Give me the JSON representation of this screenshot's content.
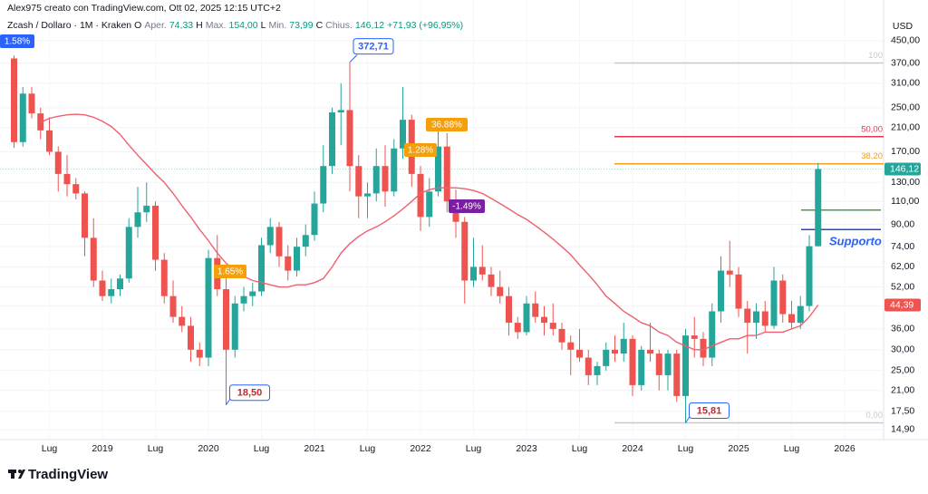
{
  "header": {
    "author": "Alex975 creato con TradingView.com, Ott 02, 2025 12:15 UTC+2",
    "symbol": "Zcash / Dollaro · 1M · Kraken",
    "legend": [
      {
        "key": "O",
        "label": "Aper.",
        "value": "74,33"
      },
      {
        "key": "H",
        "label": "Max.",
        "value": "154,00"
      },
      {
        "key": "L",
        "label": "Min.",
        "value": "73,99"
      },
      {
        "key": "C",
        "label": "Chius.",
        "value": "146,12"
      }
    ],
    "change": "+71,93 (+96,95%)"
  },
  "footer": {
    "logo": "TradingView"
  },
  "chart_data": {
    "type": "candlestick",
    "currency": "USD",
    "log_scale": true,
    "grid": true,
    "up_color": "#26a69a",
    "down_color": "#ef5350",
    "x": [
      "2018-03",
      "2018-04",
      "2018-05",
      "2018-06",
      "2018-07",
      "2018-08",
      "2018-09",
      "2018-10",
      "2018-11",
      "2018-12",
      "2019-01",
      "2019-02",
      "2019-03",
      "2019-04",
      "2019-05",
      "2019-06",
      "2019-07",
      "2019-08",
      "2019-09",
      "2019-10",
      "2019-11",
      "2019-12",
      "2020-01",
      "2020-02",
      "2020-03",
      "2020-04",
      "2020-05",
      "2020-06",
      "2020-07",
      "2020-08",
      "2020-09",
      "2020-10",
      "2020-11",
      "2020-12",
      "2021-01",
      "2021-02",
      "2021-03",
      "2021-04",
      "2021-05",
      "2021-06",
      "2021-07",
      "2021-08",
      "2021-09",
      "2021-10",
      "2021-11",
      "2021-12",
      "2022-01",
      "2022-02",
      "2022-03",
      "2022-04",
      "2022-05",
      "2022-06",
      "2022-07",
      "2022-08",
      "2022-09",
      "2022-10",
      "2022-11",
      "2022-12",
      "2023-01",
      "2023-02",
      "2023-03",
      "2023-04",
      "2023-05",
      "2023-06",
      "2023-07",
      "2023-08",
      "2023-09",
      "2023-10",
      "2023-11",
      "2023-12",
      "2024-01",
      "2024-02",
      "2024-03",
      "2024-04",
      "2024-05",
      "2024-06",
      "2024-07",
      "2024-08",
      "2024-09",
      "2024-10",
      "2024-11",
      "2024-12",
      "2025-01",
      "2025-02",
      "2025-03",
      "2025-04",
      "2025-05",
      "2025-06",
      "2025-07",
      "2025-08",
      "2025-09",
      "2025-10"
    ],
    "open": [
      385,
      185,
      283,
      238,
      205,
      170,
      140,
      128,
      118,
      80,
      55,
      48,
      51,
      56,
      88,
      100,
      106,
      66,
      48,
      40,
      37,
      30,
      28,
      67,
      51,
      30,
      45,
      48,
      50,
      75,
      88,
      68,
      60,
      74,
      82,
      108,
      150,
      240,
      245,
      150,
      115,
      118,
      150,
      120,
      175,
      225,
      140,
      96,
      120,
      178,
      110,
      92,
      55,
      62,
      58,
      52,
      48,
      38,
      35,
      45,
      40,
      38,
      36,
      32,
      30,
      28,
      24,
      26,
      30,
      29,
      33,
      22,
      30,
      29,
      24,
      29,
      20,
      34,
      33,
      28,
      42,
      60,
      58,
      43,
      38,
      42,
      37,
      55,
      41,
      38,
      44,
      74.33
    ],
    "high": [
      395,
      300,
      300,
      250,
      230,
      178,
      165,
      135,
      120,
      95,
      60,
      56,
      58,
      95,
      125,
      130,
      110,
      70,
      55,
      44,
      40,
      32,
      72,
      82,
      56,
      48,
      52,
      54,
      80,
      95,
      92,
      75,
      80,
      90,
      120,
      180,
      250,
      310,
      372.71,
      165,
      130,
      175,
      180,
      190,
      300,
      235,
      150,
      135,
      205,
      200,
      122,
      96,
      80,
      75,
      62,
      60,
      52,
      40,
      48,
      50,
      44,
      45,
      38,
      34,
      36,
      30,
      27,
      32,
      34,
      38,
      34,
      31,
      38,
      30,
      30,
      30,
      36,
      40,
      35,
      45,
      68,
      78,
      62,
      46,
      45,
      46,
      62,
      58,
      46,
      48,
      82,
      154
    ],
    "low": [
      176,
      178,
      228,
      190,
      165,
      120,
      115,
      112,
      68,
      52,
      46,
      45,
      48,
      54,
      80,
      92,
      60,
      45,
      38,
      35,
      27,
      26,
      26,
      48,
      18.5,
      28,
      42,
      44,
      48,
      70,
      62,
      55,
      57,
      68,
      78,
      100,
      140,
      180,
      120,
      95,
      95,
      110,
      105,
      115,
      160,
      125,
      85,
      88,
      115,
      100,
      80,
      45,
      52,
      55,
      48,
      45,
      34,
      33,
      34,
      38,
      34,
      34,
      30,
      24,
      27,
      22,
      22,
      25,
      27,
      27,
      20,
      21,
      27,
      21,
      21,
      19,
      15.81,
      28,
      26,
      26,
      38,
      52,
      40,
      29,
      33,
      35,
      36,
      38,
      36,
      36,
      42,
      73.99
    ],
    "close": [
      185,
      283,
      238,
      205,
      170,
      140,
      128,
      118,
      80,
      55,
      48,
      51,
      56,
      88,
      100,
      106,
      66,
      48,
      40,
      37,
      30,
      28,
      67,
      51,
      30,
      45,
      48,
      50,
      75,
      88,
      68,
      60,
      74,
      82,
      108,
      150,
      240,
      245,
      150,
      115,
      118,
      150,
      120,
      175,
      225,
      140,
      96,
      120,
      178,
      110,
      92,
      55,
      62,
      58,
      52,
      48,
      38,
      35,
      45,
      40,
      38,
      36,
      32,
      30,
      28,
      24,
      26,
      30,
      29,
      33,
      22,
      30,
      29,
      24,
      29,
      20,
      34,
      33,
      28,
      42,
      60,
      58,
      43,
      38,
      42,
      37,
      55,
      41,
      38,
      44,
      74.33,
      146.12
    ],
    "close_label": "146,12",
    "ma": {
      "color": "#ef5f6f",
      "last_label": "44,39",
      "values": [
        null,
        null,
        null,
        220,
        228,
        232,
        235,
        236,
        235,
        230,
        222,
        212,
        198,
        180,
        165,
        152,
        140,
        130,
        118,
        106,
        96,
        86,
        78,
        70,
        64,
        60,
        57,
        55,
        54,
        53,
        52,
        52,
        53,
        53,
        54,
        56,
        62,
        70,
        76,
        81,
        85,
        88,
        92,
        97,
        103,
        110,
        118,
        122,
        124,
        124,
        124,
        123,
        121,
        118,
        113,
        108,
        103,
        98,
        94,
        89,
        84,
        79,
        74,
        69,
        63,
        58,
        53,
        48,
        45,
        42,
        40,
        38,
        37,
        35,
        34,
        32,
        31,
        30,
        30,
        31,
        32,
        33,
        33,
        34,
        34,
        35,
        35,
        35,
        36,
        37,
        40,
        44.39
      ]
    },
    "ylim": [
      13.65,
      557
    ],
    "yticks": [
      {
        "value": 14.9,
        "label": "14,90"
      },
      {
        "value": 17.5,
        "label": "17,50"
      },
      {
        "value": 21,
        "label": "21,00"
      },
      {
        "value": 25,
        "label": "25,00"
      },
      {
        "value": 30,
        "label": "30,00"
      },
      {
        "value": 36,
        "label": "36,00"
      },
      {
        "value": 44,
        "label": "44,00"
      },
      {
        "value": 52,
        "label": "52,00"
      },
      {
        "value": 62,
        "label": "62,00"
      },
      {
        "value": 74,
        "label": "74,00"
      },
      {
        "value": 90,
        "label": "90,00"
      },
      {
        "value": 110,
        "label": "110,00"
      },
      {
        "value": 130,
        "label": "130,00"
      },
      {
        "value": 170,
        "label": "170,00"
      },
      {
        "value": 210,
        "label": "210,00"
      },
      {
        "value": 250,
        "label": "250,00"
      },
      {
        "value": 310,
        "label": "310,00"
      },
      {
        "value": 370,
        "label": "370,00"
      },
      {
        "value": 450,
        "label": "450,00"
      }
    ],
    "xlim": [
      "2018-02",
      "2026-05"
    ],
    "xticks": [
      {
        "value": "2018-07",
        "label": "Lug"
      },
      {
        "value": "2019-01",
        "label": "2019"
      },
      {
        "value": "2019-07",
        "label": "Lug"
      },
      {
        "value": "2020-01",
        "label": "2020"
      },
      {
        "value": "2020-07",
        "label": "Lug"
      },
      {
        "value": "2021-01",
        "label": "2021"
      },
      {
        "value": "2021-07",
        "label": "Lug"
      },
      {
        "value": "2022-01",
        "label": "2022"
      },
      {
        "value": "2022-07",
        "label": "Lug"
      },
      {
        "value": "2023-01",
        "label": "2023"
      },
      {
        "value": "2023-07",
        "label": "Lug"
      },
      {
        "value": "2024-01",
        "label": "2024"
      },
      {
        "value": "2024-07",
        "label": "Lug"
      },
      {
        "value": "2025-01",
        "label": "2025"
      },
      {
        "value": "2025-07",
        "label": "Lug"
      },
      {
        "value": "2026-01",
        "label": "2026"
      }
    ],
    "fib_levels": [
      {
        "value": 370,
        "label": "100",
        "color": "#c7c9cf"
      },
      {
        "value": 194,
        "label": "50,00",
        "color": "#e53950"
      },
      {
        "value": 153,
        "label": "38,20",
        "color": "#f0a020"
      },
      {
        "value": 15.81,
        "label": "0,00",
        "color": "#c7c9cf"
      }
    ],
    "support_lines": [
      {
        "value": 102,
        "color": "#43a047"
      },
      {
        "value": 86,
        "color": "#1e4bd2",
        "label": "Supporto"
      }
    ],
    "extremes": [
      {
        "x": "2021-05",
        "value": 372.71,
        "label": "372,71",
        "kind": "high",
        "color": "#2962ff"
      },
      {
        "x": "2020-03",
        "value": 18.5,
        "label": "18,50",
        "kind": "low",
        "color": "#c62828"
      },
      {
        "x": "2024-07",
        "value": 15.81,
        "label": "15,81",
        "kind": "low",
        "color": "#c62828"
      }
    ],
    "tags": [
      {
        "text": "1.58%",
        "color": "#2962ff"
      },
      {
        "text": "1.65%",
        "color": "#f59f0b"
      },
      {
        "text": "1.28%",
        "color": "#f59f0b"
      },
      {
        "text": "36.88%",
        "color": "#f59f0b"
      },
      {
        "text": "-1.49%",
        "color": "#7b1fa2"
      }
    ]
  }
}
